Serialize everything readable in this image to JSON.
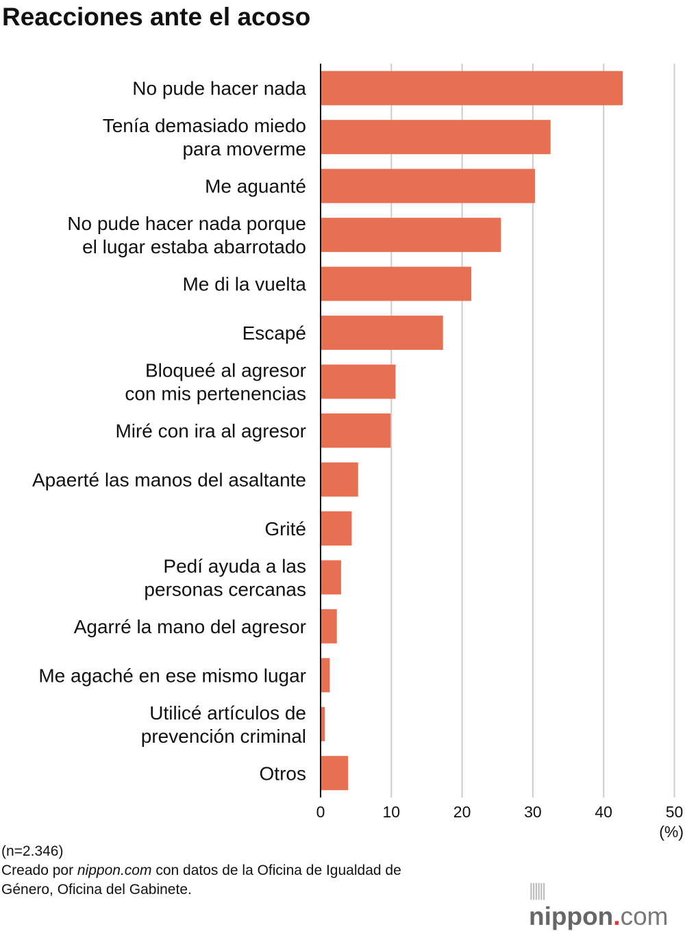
{
  "chart_data": {
    "type": "bar",
    "orientation": "horizontal",
    "title": "Reacciones ante el acoso",
    "categories": [
      [
        "No pude hacer nada"
      ],
      [
        "Tenía demasiado miedo",
        "para moverme"
      ],
      [
        "Me aguanté"
      ],
      [
        "No pude hacer nada porque",
        "el lugar estaba abarrotado"
      ],
      [
        "Me di la vuelta"
      ],
      [
        "Escapé"
      ],
      [
        "Bloqueé al agresor",
        "con mis pertenencias"
      ],
      [
        "Miré con ira al agresor"
      ],
      [
        "Apaerté las manos del asaltante"
      ],
      [
        "Grité"
      ],
      [
        "Pedí ayuda a las",
        "personas cercanas"
      ],
      [
        "Agarré la mano del agresor"
      ],
      [
        "Me agaché en ese mismo lugar"
      ],
      [
        "Utilicé artículos de",
        "prevención criminal"
      ],
      [
        "Otros"
      ]
    ],
    "values": [
      42.7,
      32.5,
      30.3,
      25.5,
      21.3,
      17.3,
      10.6,
      9.9,
      5.3,
      4.4,
      2.9,
      2.3,
      1.3,
      0.6,
      3.9
    ],
    "xlim": [
      0,
      50
    ],
    "xticks": [
      "0",
      "10",
      "20",
      "30",
      "40",
      "50"
    ],
    "xunit": "(%)",
    "grid": true,
    "bar_color": "#e87052",
    "grid_color": "#cccccc"
  },
  "footer": {
    "n": "(n=2.346)",
    "credit_prefix": "Creado por ",
    "credit_site": "nippon.com",
    "credit_line1_rest": " con datos de la Oficina de Igualdad de",
    "credit_line2": "Género, Oficina del Gabinete."
  },
  "logo": {
    "name": "nippon",
    "dot": ".",
    "tld": "com"
  }
}
